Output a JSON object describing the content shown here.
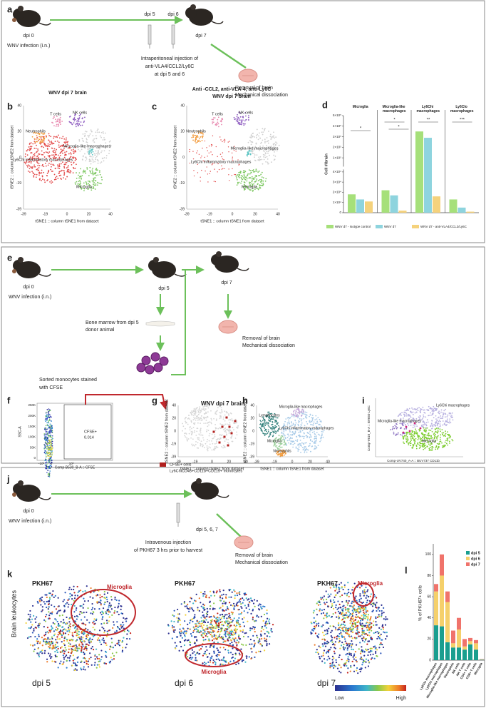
{
  "panels": {
    "a": {
      "label": "a",
      "dpi0": "dpi 0",
      "infection": "WNV infection (i.n.)",
      "dpi5": "dpi 5",
      "dpi6": "dpi 6",
      "dpi7": "dpi 7",
      "injection": [
        "Intraperitoneal injection of",
        "anti-VLA4/CCL2/Ly6C",
        "at dpi 5 and 6"
      ],
      "removal": [
        "Removal of brain",
        "Mechanical dissociation"
      ]
    },
    "b": {
      "label": "b",
      "title": "WNV dpi 7 brain",
      "xlabel": "tSNE1 :: column tSNE1 from dataset",
      "ylabel": "tSNE2 :: column tSNE2 from dataset",
      "xticks": [
        "-39",
        "-19",
        "0",
        "20",
        "40"
      ],
      "yticks": [
        "40",
        "20",
        "0",
        "-19",
        "-39"
      ],
      "clusters": [
        "T cells",
        "NK cells",
        "Neutrophils",
        "Microglia-like macrophages",
        "Ly6Chi inflammatory macrophages",
        "Microglia"
      ]
    },
    "c": {
      "label": "c",
      "title": [
        "Anti -CCL2,  anti-VLA-4,  anti-Ly6C",
        "WNV dpi 7 brain"
      ],
      "xlabel": "tSNE1 :: column tSNE1 from dataset",
      "ylabel": "tSNE2 :: column tSNE2 from dataset",
      "xticks": [
        "-39",
        "-19",
        "0",
        "20",
        "40"
      ],
      "yticks": [
        "40",
        "20",
        "0",
        "-19",
        "-39"
      ],
      "clusters": [
        "T cells",
        "NK cells",
        "Neutrophils",
        "Microglia-like macrophages",
        "Ly6Chi inflammatory macrophages",
        "Microglia"
      ]
    },
    "e": {
      "label": "e",
      "dpi0": "dpi 0",
      "infection": "WNV infection (i.n.)",
      "dpi5": "dpi 5",
      "dpi7": "dpi 7",
      "bone_marrow": [
        "Bone marrow from dpi 5",
        "donor animal"
      ],
      "sorted": [
        "Sorted monocytes stained",
        "with CFSE"
      ],
      "removal": [
        "Removal of brain",
        "Mechanical dissociation"
      ]
    },
    "f": {
      "label": "f",
      "ylabel": "SSC-A",
      "xlabel": "Comp-B530_B-A :: CFSE",
      "gate": "CFSE+",
      "gate_value": "0.014",
      "yticks": [
        "250K",
        "200K",
        "150K",
        "100K",
        "50K",
        "0"
      ],
      "xticks": [
        "-10³",
        "0",
        "10³"
      ]
    },
    "g": {
      "label": "g",
      "title": "WNV dpi 7 brain",
      "xlabel": "tSNE1 :: column tSNE1 from dataset",
      "ylabel": "tSNE2 :: column tSNE2 from dataset",
      "xticks": [
        "-39",
        "-19",
        "0",
        "20",
        "40"
      ],
      "yticks": [
        "40",
        "20",
        "0",
        "-19",
        "-39"
      ],
      "legend": [
        "CFSE+ cells",
        "Ly6ChiCD45+CD11b+CD115+ monocytes"
      ]
    },
    "h": {
      "label": "h",
      "xlabel": "tSNE1 :: column tSNE1 from dataset",
      "ylabel": "tSNE2 :: column tSNE2 from dataset",
      "xticks": [
        "-39",
        "-19",
        "0",
        "20",
        "40"
      ],
      "yticks": [
        "40",
        "20",
        "0",
        "-19",
        "-39"
      ],
      "clusters": [
        "Lymphocytes",
        "Microglia-like macrophages",
        "Ly6Chi inflammatory macrophages",
        "Microglia",
        "Neutrophils"
      ]
    },
    "i": {
      "label": "i",
      "ylabel": "Comp-V610_B-A :: BV650 Ly6C",
      "xlabel": "Comp-UV740_A-A :: BUV737 CD11b",
      "clusters": [
        "Ly6Chi macrophages",
        "Microglia-like macrophages",
        "Microglia"
      ]
    },
    "j": {
      "label": "j",
      "dpi0": "dpi 0",
      "infection": "WNV infection (i.n.)",
      "dpi": "dpi 5, 6, 7",
      "injection": [
        "Intravenous injection",
        "of PKH67 3 hrs prior to harvest"
      ],
      "removal": [
        "Removal of brain",
        "Mechanical dissociation"
      ]
    },
    "k": {
      "label": "k",
      "row_label": "Brain leukocytes",
      "plots": [
        {
          "title": "PKH67",
          "region": "Microglia",
          "dpi": "dpi 5"
        },
        {
          "title": "PKH67",
          "region": "Microglia",
          "dpi": "dpi 6"
        },
        {
          "title": "PKH67",
          "region": "Microglia",
          "dpi": "dpi 7"
        }
      ],
      "colorbar": [
        "Low",
        "High"
      ]
    }
  },
  "chart_data": [
    {
      "type": "bar",
      "label": "d",
      "ylabel": "Cell #/brain",
      "categories": [
        "Microglia",
        "Microglia-like macrophages",
        "Ly6Chi macrophages",
        "Ly6Clo macrophages"
      ],
      "series": [
        {
          "name": "WNV d7 - Isotype control",
          "color": "#a6e07a",
          "values": [
            18000,
            22000,
            350000,
            13000
          ]
        },
        {
          "name": "WNV d7",
          "color": "#8ed4de",
          "values": [
            13000,
            17000,
            290000,
            5000
          ]
        },
        {
          "name": "WNV d7 - anti-VLA4/CCL2/Ly6C",
          "color": "#f5d27c",
          "values": [
            11000,
            2000,
            16000,
            1000
          ]
        }
      ],
      "ylim": [
        0,
        500000
      ],
      "ybreak": 40000,
      "yticks": [
        {
          "value": 0,
          "label": "0"
        },
        {
          "value": 10000,
          "label": "1×10⁴"
        },
        {
          "value": 20000,
          "label": "2×10⁴"
        },
        {
          "value": 30000,
          "label": "3×10⁴"
        },
        {
          "value": 40000,
          "label": "4×10⁴"
        },
        {
          "value": 100000,
          "label": "1×10⁵"
        },
        {
          "value": 200000,
          "label": "2×10⁵"
        },
        {
          "value": 300000,
          "label": "3×10⁵"
        },
        {
          "value": 400000,
          "label": "4×10⁵"
        },
        {
          "value": 500000,
          "label": "5×10⁵"
        }
      ],
      "annotations": [
        "*",
        "*",
        "*",
        "**",
        "***"
      ]
    },
    {
      "type": "stacked_bar",
      "label": "l",
      "ylabel": "% of PKH67+ cells",
      "categories": [
        "Ly6Clo macrophages",
        "Ly6Chi macrophages",
        "Microglia-like macrophages",
        "Neutrophils",
        "NK cells",
        "NK T cells",
        "CD4+ T cells",
        "CD8+ T cells",
        "Microglia"
      ],
      "series": [
        {
          "name": "dpi 5",
          "color": "#1a9e8f",
          "values": [
            33,
            32,
            17,
            12,
            12,
            10,
            15,
            10,
            0.5
          ]
        },
        {
          "name": "dpi 6",
          "color": "#f5d06b",
          "values": [
            32,
            48,
            38,
            4,
            17,
            3,
            3,
            6,
            0.3
          ]
        },
        {
          "name": "dpi 7",
          "color": "#f0736b",
          "values": [
            7,
            20,
            10,
            12,
            11,
            7,
            3,
            3,
            0.3
          ]
        }
      ],
      "ylim": [
        0,
        110
      ],
      "yticks": [
        0,
        20,
        40,
        60,
        80,
        100
      ],
      "legend": "upper right"
    }
  ]
}
